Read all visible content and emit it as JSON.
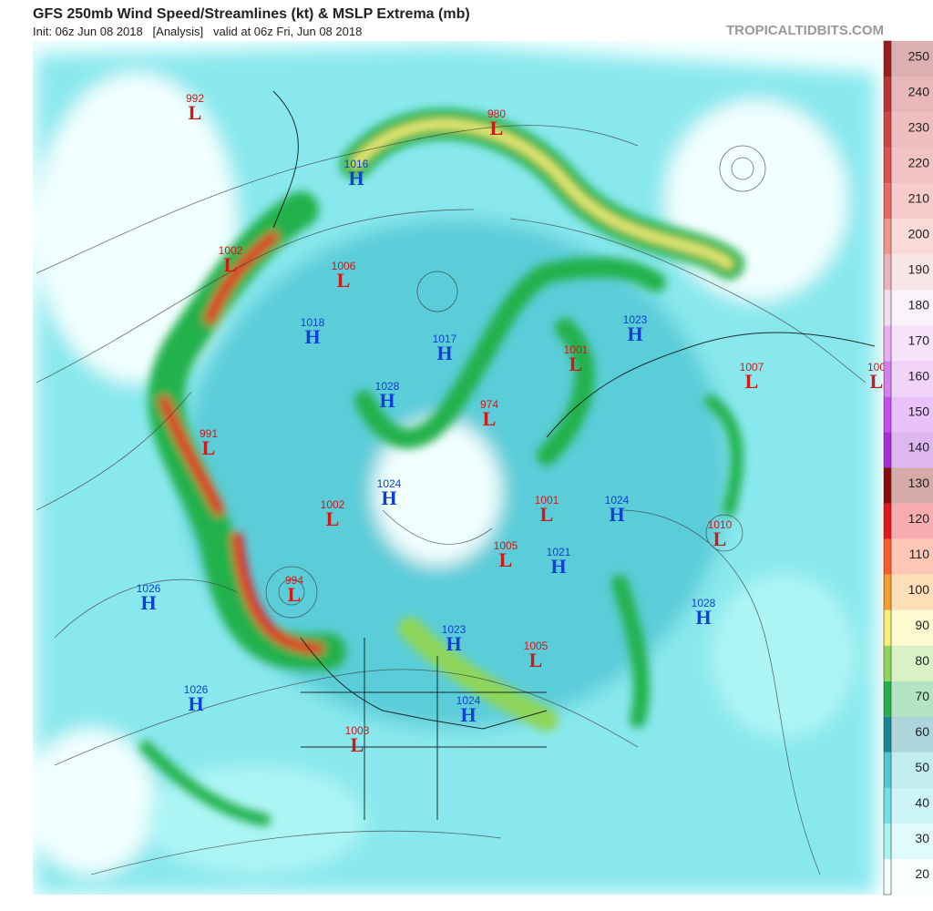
{
  "header": {
    "title": "GFS 250mb Wind Speed/Streamlines (kt) & MSLP Extrema (mb)",
    "subtitle": "Init: 06z Jun 08 2018   [Analysis]   valid at 06z Fri, Jun 08 2018",
    "site": "TROPICALTIDBITS.COM"
  },
  "colorbar": {
    "ticks": [
      20,
      30,
      40,
      50,
      60,
      70,
      80,
      90,
      100,
      110,
      120,
      130,
      140,
      150,
      160,
      170,
      180,
      190,
      200,
      210,
      220,
      230,
      240,
      250
    ],
    "colors": [
      "#f2ffff",
      "#a6f4f4",
      "#6fe2e8",
      "#4cc8d4",
      "#178898",
      "#22b14c",
      "#8ed65a",
      "#f8ef78",
      "#f6a030",
      "#ff5a2a",
      "#e8141c",
      "#8b0c0c",
      "#a030d8",
      "#c050f0",
      "#d680f0",
      "#e6b0f4",
      "#f4dcf2",
      "#e8b6bc",
      "#f0968a",
      "#e86a64",
      "#dc5050",
      "#d04444",
      "#bc3434",
      "#9b1c1c"
    ]
  },
  "centers": [
    {
      "type": "L",
      "pressure": 992
    },
    {
      "type": "L",
      "pressure": 980
    },
    {
      "type": "H",
      "pressure": 1016
    },
    {
      "type": "L",
      "pressure": 1002
    },
    {
      "type": "L",
      "pressure": 1006
    },
    {
      "type": "H",
      "pressure": 1018
    },
    {
      "type": "H",
      "pressure": 1017
    },
    {
      "type": "H",
      "pressure": 1023
    },
    {
      "type": "L",
      "pressure": 1001
    },
    {
      "type": "L",
      "pressure": 1007
    },
    {
      "type": "L",
      "pressure": "100"
    },
    {
      "type": "H",
      "pressure": 1028
    },
    {
      "type": "L",
      "pressure": 974
    },
    {
      "type": "L",
      "pressure": 991
    },
    {
      "type": "H",
      "pressure": 1024
    },
    {
      "type": "L",
      "pressure": 1002
    },
    {
      "type": "L",
      "pressure": 1001
    },
    {
      "type": "H",
      "pressure": 1024
    },
    {
      "type": "L",
      "pressure": 1010
    },
    {
      "type": "L",
      "pressure": 1005
    },
    {
      "type": "H",
      "pressure": 1021
    },
    {
      "type": "H",
      "pressure": 1026
    },
    {
      "type": "L",
      "pressure": 994
    },
    {
      "type": "H",
      "pressure": 1028
    },
    {
      "type": "H",
      "pressure": 1023
    },
    {
      "type": "L",
      "pressure": 1005
    },
    {
      "type": "H",
      "pressure": 1026
    },
    {
      "type": "H",
      "pressure": 1024
    },
    {
      "type": "L",
      "pressure": 1003
    }
  ]
}
